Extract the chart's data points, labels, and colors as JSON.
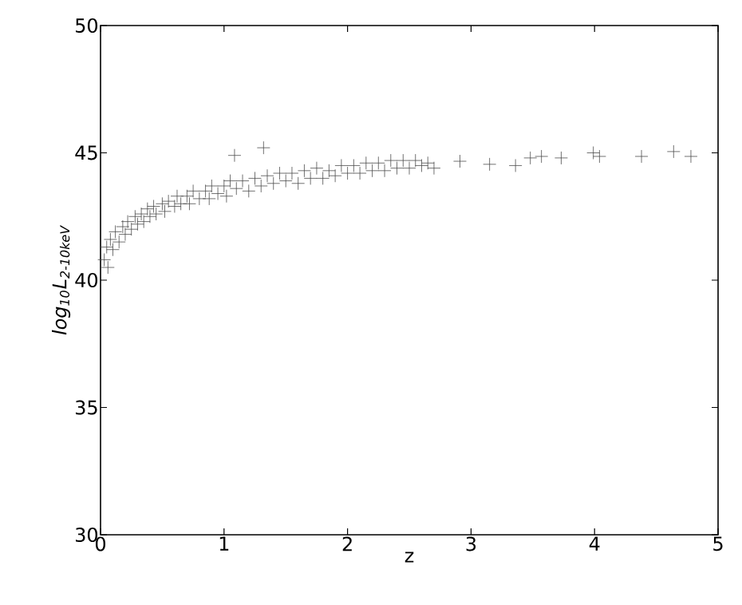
{
  "chart_data": {
    "type": "scatter",
    "xlabel": "z",
    "ylabel": "log$_{10}$L$_{2-10keV}$",
    "xlim": [
      0,
      5
    ],
    "ylim": [
      30,
      50
    ],
    "xticks": [
      0,
      1,
      2,
      3,
      4,
      5
    ],
    "yticks": [
      30,
      35,
      40,
      45,
      50
    ],
    "marker": "cross",
    "grid": false,
    "series": [
      {
        "color": "#4d4d4d",
        "x": [
          0.03,
          0.05,
          0.06,
          0.08,
          0.1,
          0.12,
          0.15,
          0.18,
          0.2,
          0.22,
          0.25,
          0.28,
          0.3,
          0.33,
          0.35,
          0.38,
          0.4,
          0.43,
          0.45,
          0.5,
          0.52,
          0.55,
          0.6,
          0.62,
          0.65,
          0.7,
          0.72,
          0.75,
          0.8,
          0.85,
          0.88,
          0.9,
          0.95,
          1.0,
          1.02,
          1.05,
          1.085,
          1.1,
          1.15,
          1.2,
          1.25,
          1.3,
          1.32,
          1.35,
          1.4,
          1.45,
          1.5,
          1.55,
          1.6,
          1.65,
          1.7,
          1.75,
          1.8,
          1.85,
          1.9,
          1.95,
          2.0,
          2.05,
          2.1,
          2.15,
          2.2,
          2.25,
          2.3,
          2.35,
          2.4,
          2.45,
          2.5,
          2.55,
          2.6,
          2.65,
          2.7,
          2.91,
          3.15,
          3.36,
          3.48,
          3.57,
          3.73,
          3.99,
          4.04,
          4.38,
          4.64,
          4.78
        ],
        "values": [
          40.8,
          41.3,
          40.5,
          41.6,
          41.2,
          41.9,
          41.5,
          42.1,
          41.8,
          42.3,
          42.0,
          42.5,
          42.2,
          42.6,
          42.3,
          42.8,
          42.5,
          42.9,
          42.6,
          43.0,
          42.7,
          43.1,
          42.9,
          43.3,
          43.0,
          43.3,
          43.0,
          43.5,
          43.2,
          43.5,
          43.2,
          43.7,
          43.4,
          43.7,
          43.3,
          43.9,
          44.9,
          43.6,
          43.9,
          43.5,
          44.0,
          43.7,
          45.2,
          44.1,
          43.8,
          44.2,
          43.9,
          44.2,
          43.8,
          44.3,
          44.0,
          44.4,
          44.0,
          44.3,
          44.1,
          44.5,
          44.2,
          44.5,
          44.2,
          44.6,
          44.3,
          44.6,
          44.3,
          44.7,
          44.4,
          44.7,
          44.4,
          44.7,
          44.5,
          44.6,
          44.4,
          44.67,
          44.55,
          44.5,
          44.8,
          44.86,
          44.8,
          45.0,
          44.86,
          44.86,
          45.05,
          44.86
        ]
      }
    ]
  }
}
